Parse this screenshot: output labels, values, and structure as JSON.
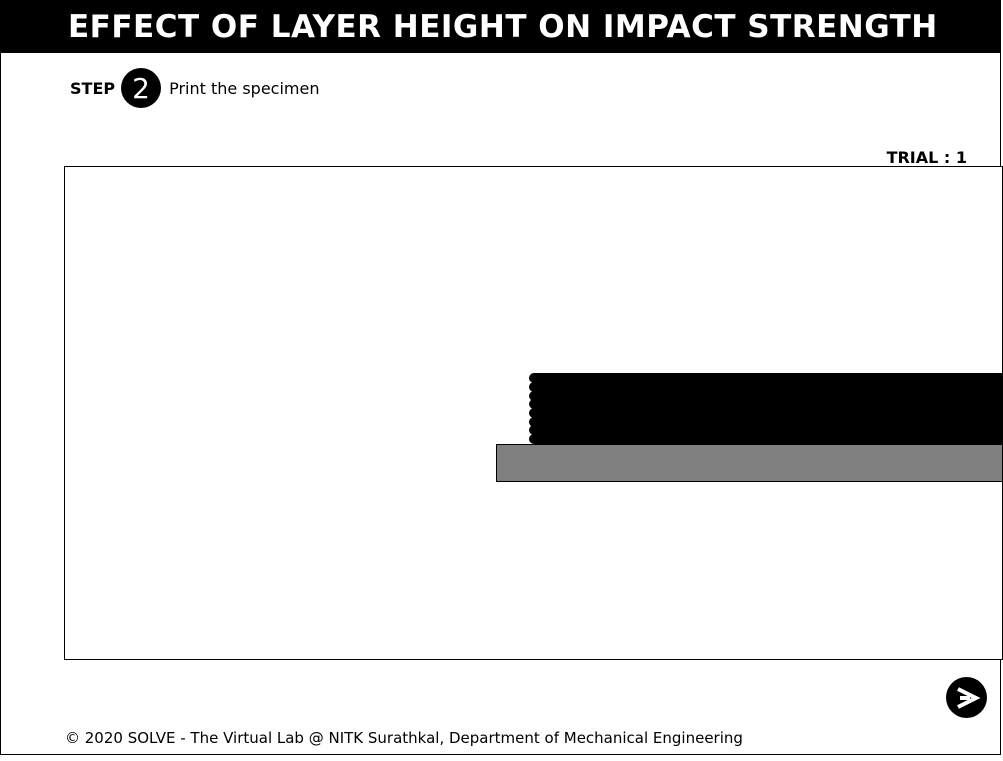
{
  "header": {
    "title": "EFFECT OF LAYER HEIGHT ON IMPACT STRENGTH"
  },
  "step": {
    "label": "STEP",
    "number": "2",
    "description": "Print the specimen"
  },
  "trial": {
    "text": "TRIAL : 1"
  },
  "printer": {
    "layers_printed": 8,
    "layer_color": "#000000",
    "bed_color": "#808080"
  },
  "navigation": {
    "next_icon": "arrow-right-icon"
  },
  "footer": {
    "text": "© 2020 SOLVE - The Virtual Lab @ NITK Surathkal, Department of Mechanical Engineering"
  }
}
